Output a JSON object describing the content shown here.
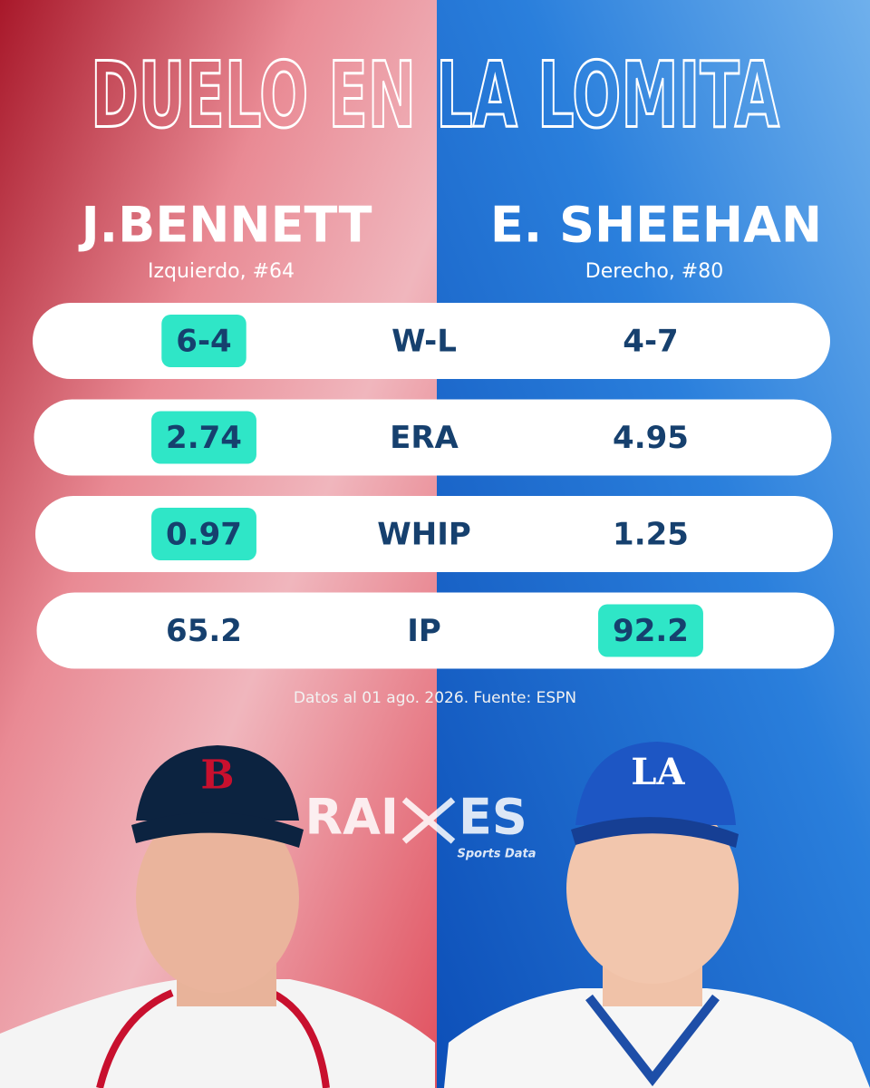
{
  "title": "DUELO EN LA LOMITA",
  "players": [
    {
      "name": "J.BENNETT",
      "detail": "Izquierdo, #64"
    },
    {
      "name": "E. SHEEHAN",
      "detail": "Derecho, #80"
    }
  ],
  "stats": [
    {
      "label": "W-L",
      "left": "6-4",
      "right": "4-7",
      "best": "left"
    },
    {
      "label": "ERA",
      "left": 2.74,
      "right": 4.95,
      "best": "left"
    },
    {
      "label": "WHIP",
      "left": 0.97,
      "right": 1.25,
      "best": "left"
    },
    {
      "label": "IP",
      "left": 65.2,
      "right": 92.2,
      "best": "right"
    }
  ],
  "footnote": "Datos al 01 ago. 2026. Fuente: ESPN",
  "brand": {
    "left": "RAI",
    "right": "ES",
    "tagline": "Sports Data"
  }
}
